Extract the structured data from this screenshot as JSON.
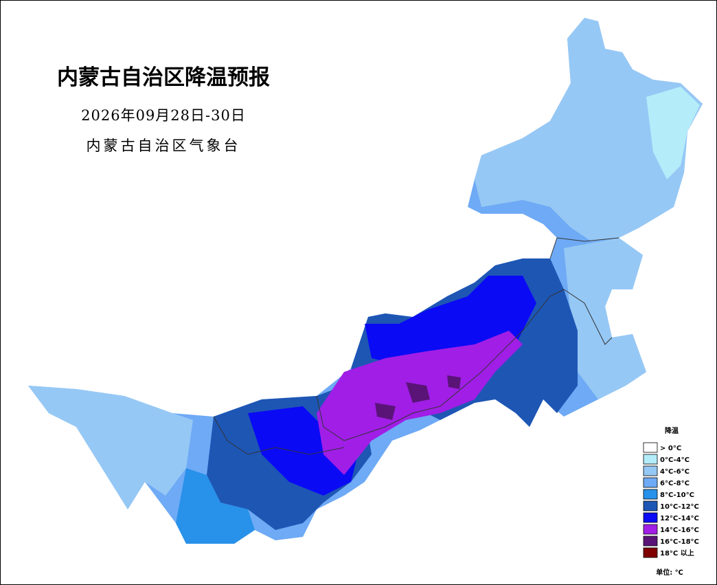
{
  "header": {
    "title": "内蒙古自治区降温预报",
    "date": "2026年09月28日-30日",
    "issuer": "内蒙古自治区气象台"
  },
  "legend": {
    "title": "降温",
    "unit": "单位: ℃",
    "items": [
      {
        "label": "> 0°C",
        "color": "#ffffff"
      },
      {
        "label": "0°C-4°C",
        "color": "#b4ecfa"
      },
      {
        "label": "4°C-6°C",
        "color": "#96c8f5"
      },
      {
        "label": "6°C-8°C",
        "color": "#6eaaf5"
      },
      {
        "label": "8°C-10°C",
        "color": "#2891ea"
      },
      {
        "label": "10°C-12°C",
        "color": "#1e56b4"
      },
      {
        "label": "12°C-14°C",
        "color": "#0a0af5"
      },
      {
        "label": "14°C-16°C",
        "color": "#a01ee6"
      },
      {
        "label": "16°C-18°C",
        "color": "#5a1478"
      },
      {
        "label": "18°C 以上",
        "color": "#800000"
      }
    ]
  }
}
